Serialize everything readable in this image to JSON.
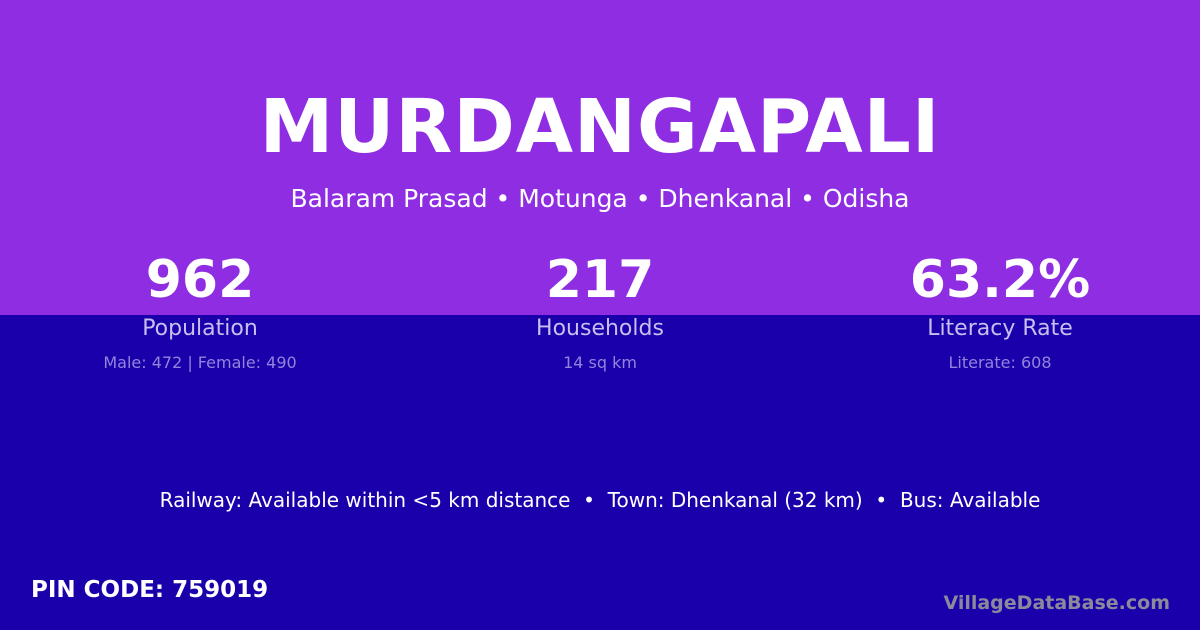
{
  "colors": {
    "top_background": "#8e2de2",
    "bottom_background": "#1a00aa"
  },
  "village": {
    "name": "MURDANGAPALI",
    "location": "Balaram Prasad • Motunga • Dhenkanal • Odisha"
  },
  "stats": [
    {
      "value": "962",
      "label": "Population",
      "sub": "Male: 472 | Female: 490"
    },
    {
      "value": "217",
      "label": "Households",
      "sub": "14 sq km"
    },
    {
      "value": "63.2%",
      "label": "Literacy Rate",
      "sub": "Literate: 608"
    }
  ],
  "facilities": "Railway: Available within <5 km distance  •  Town: Dhenkanal (32 km)  •  Bus: Available",
  "pin_code": "PIN CODE: 759019",
  "brand": "VillageDataBase.com"
}
